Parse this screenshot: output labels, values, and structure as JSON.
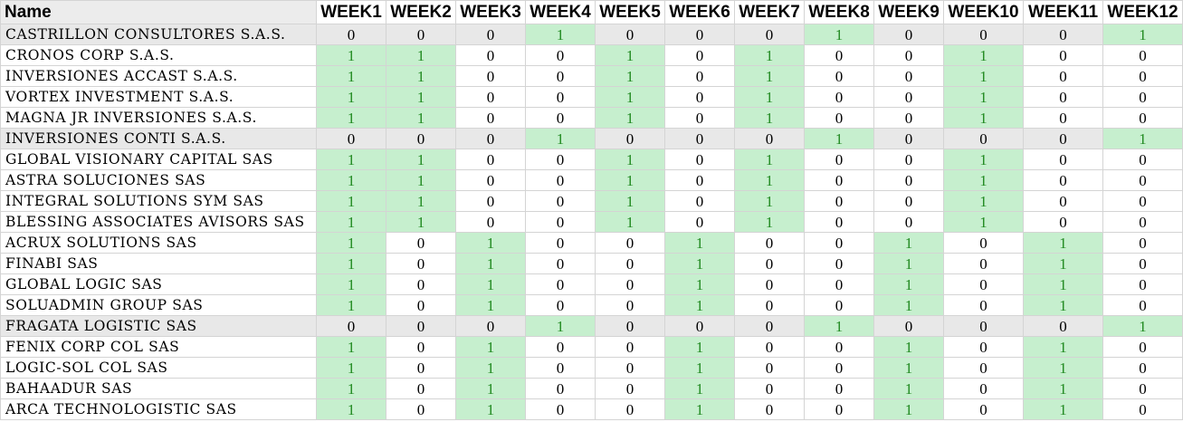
{
  "header": {
    "name_label": "Name",
    "weeks": [
      "WEEK1",
      "WEEK2",
      "WEEK3",
      "WEEK4",
      "WEEK5",
      "WEEK6",
      "WEEK7",
      "WEEK8",
      "WEEK9",
      "WEEK10",
      "WEEK11",
      "WEEK12"
    ]
  },
  "colors": {
    "highlight_fill": "#c6efce",
    "highlight_text": "#228b22",
    "grey_row": "#e8e8e8",
    "grid": "#d4d4d4"
  },
  "rows": [
    {
      "name": "CASTRILLON CONSULTORES S.A.S.",
      "grey": true,
      "values": [
        "0",
        "0",
        "0",
        "1",
        "0",
        "0",
        "0",
        "1",
        "0",
        "0",
        "0",
        "1"
      ]
    },
    {
      "name": "CRONOS CORP S.A.S.",
      "grey": false,
      "values": [
        "1",
        "1",
        "0",
        "0",
        "1",
        "0",
        "1",
        "0",
        "0",
        "1",
        "0",
        "0"
      ]
    },
    {
      "name": "INVERSIONES ACCAST S.A.S.",
      "grey": false,
      "values": [
        "1",
        "1",
        "0",
        "0",
        "1",
        "0",
        "1",
        "0",
        "0",
        "1",
        "0",
        "0"
      ]
    },
    {
      "name": "VORTEX INVESTMENT S.A.S.",
      "grey": false,
      "values": [
        "1",
        "1",
        "0",
        "0",
        "1",
        "0",
        "1",
        "0",
        "0",
        "1",
        "0",
        "0"
      ]
    },
    {
      "name": "MAGNA JR INVERSIONES S.A.S.",
      "grey": false,
      "values": [
        "1",
        "1",
        "0",
        "0",
        "1",
        "0",
        "1",
        "0",
        "0",
        "1",
        "0",
        "0"
      ]
    },
    {
      "name": "INVERSIONES CONTI S.A.S.",
      "grey": true,
      "values": [
        "0",
        "0",
        "0",
        "1",
        "0",
        "0",
        "0",
        "1",
        "0",
        "0",
        "0",
        "1"
      ]
    },
    {
      "name": "GLOBAL VISIONARY CAPITAL SAS",
      "grey": false,
      "values": [
        "1",
        "1",
        "0",
        "0",
        "1",
        "0",
        "1",
        "0",
        "0",
        "1",
        "0",
        "0"
      ]
    },
    {
      "name": "ASTRA SOLUCIONES SAS",
      "grey": false,
      "values": [
        "1",
        "1",
        "0",
        "0",
        "1",
        "0",
        "1",
        "0",
        "0",
        "1",
        "0",
        "0"
      ]
    },
    {
      "name": "INTEGRAL SOLUTIONS SYM SAS",
      "grey": false,
      "values": [
        "1",
        "1",
        "0",
        "0",
        "1",
        "0",
        "1",
        "0",
        "0",
        "1",
        "0",
        "0"
      ]
    },
    {
      "name": "BLESSING ASSOCIATES AVISORS SAS",
      "grey": false,
      "values": [
        "1",
        "1",
        "0",
        "0",
        "1",
        "0",
        "1",
        "0",
        "0",
        "1",
        "0",
        "0"
      ]
    },
    {
      "name": "ACRUX SOLUTIONS SAS",
      "grey": false,
      "values": [
        "1",
        "0",
        "1",
        "0",
        "0",
        "1",
        "0",
        "0",
        "1",
        "0",
        "1",
        "0"
      ]
    },
    {
      "name": "FINABI SAS",
      "grey": false,
      "values": [
        "1",
        "0",
        "1",
        "0",
        "0",
        "1",
        "0",
        "0",
        "1",
        "0",
        "1",
        "0"
      ]
    },
    {
      "name": "GLOBAL LOGIC SAS",
      "grey": false,
      "values": [
        "1",
        "0",
        "1",
        "0",
        "0",
        "1",
        "0",
        "0",
        "1",
        "0",
        "1",
        "0"
      ]
    },
    {
      "name": "SOLUADMIN GROUP SAS",
      "grey": false,
      "values": [
        "1",
        "0",
        "1",
        "0",
        "0",
        "1",
        "0",
        "0",
        "1",
        "0",
        "1",
        "0"
      ]
    },
    {
      "name": "FRAGATA LOGISTIC SAS",
      "grey": true,
      "values": [
        "0",
        "0",
        "0",
        "1",
        "0",
        "0",
        "0",
        "1",
        "0",
        "0",
        "0",
        "1"
      ]
    },
    {
      "name": "FENIX CORP COL SAS",
      "grey": false,
      "values": [
        "1",
        "0",
        "1",
        "0",
        "0",
        "1",
        "0",
        "0",
        "1",
        "0",
        "1",
        "0"
      ]
    },
    {
      "name": "LOGIC-SOL COL SAS",
      "grey": false,
      "values": [
        "1",
        "0",
        "1",
        "0",
        "0",
        "1",
        "0",
        "0",
        "1",
        "0",
        "1",
        "0"
      ]
    },
    {
      "name": "BAHAADUR SAS",
      "grey": false,
      "values": [
        "1",
        "0",
        "1",
        "0",
        "0",
        "1",
        "0",
        "0",
        "1",
        "0",
        "1",
        "0"
      ]
    },
    {
      "name": "ARCA TECHNOLOGISTIC SAS",
      "grey": false,
      "values": [
        "1",
        "0",
        "1",
        "0",
        "0",
        "1",
        "0",
        "0",
        "1",
        "0",
        "1",
        "0"
      ]
    }
  ]
}
